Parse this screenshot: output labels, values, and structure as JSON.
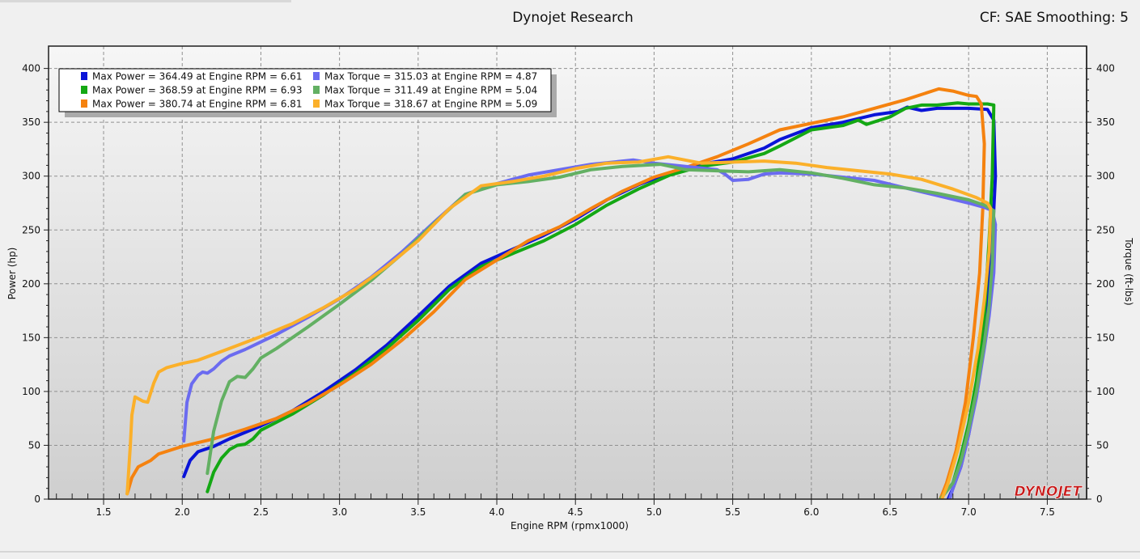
{
  "header": {
    "title": "Dynojet Research",
    "right_info": "CF: SAE Smoothing: 5"
  },
  "logo_text": "DYNOJET",
  "colors": {
    "background": "#f0f0f0",
    "plot_top": "#f6f6f6",
    "plot_bottom": "#cfcfcf",
    "frame": "#1e1e1e"
  },
  "chart_data": {
    "type": "line",
    "xlabel": "Engine RPM (rpmx1000)",
    "ylabel": "Power (hp)",
    "y2label": "Torque (ft-lbs)",
    "xlim": [
      1.15,
      7.75
    ],
    "ylim": [
      0,
      420
    ],
    "y2lim": [
      0,
      420
    ],
    "xticks": [
      1.5,
      2.0,
      2.5,
      3.0,
      3.5,
      4.0,
      4.5,
      5.0,
      5.5,
      6.0,
      6.5,
      7.0,
      7.5
    ],
    "xtick_labels": [
      "1.5",
      "2.0",
      "2.5",
      "3.0",
      "3.5",
      "4.0",
      "4.5",
      "5.0",
      "5.5",
      "6.0",
      "6.5",
      "7.0",
      "7.5"
    ],
    "yticks": [
      0,
      50,
      100,
      150,
      200,
      250,
      300,
      350,
      400
    ],
    "ytick_labels": [
      "0",
      "50",
      "100",
      "150",
      "200",
      "250",
      "300",
      "350",
      "400"
    ],
    "grid": true,
    "legend_position": "top-left",
    "legend": [
      {
        "text": "Max Power = 364.49 at Engine RPM = 6.61",
        "color": "#0a14d8"
      },
      {
        "text": "Max Power = 368.59 at Engine RPM = 6.93",
        "color": "#14a814"
      },
      {
        "text": "Max Power = 380.74 at Engine RPM = 6.81",
        "color": "#f5820f"
      },
      {
        "text": "Max Torque = 315.03 at Engine RPM = 4.87",
        "color": "#6b6bf0"
      },
      {
        "text": "Max Torque = 311.49 at Engine RPM = 5.04",
        "color": "#63b063"
      },
      {
        "text": "Max Torque = 318.67 at Engine RPM = 5.09",
        "color": "#fbb02a"
      }
    ],
    "series": [
      {
        "color": "#0a14d8",
        "points": [
          [
            2.01,
            21
          ],
          [
            2.05,
            36
          ],
          [
            2.1,
            44
          ],
          [
            2.2,
            49
          ],
          [
            2.3,
            56
          ],
          [
            2.5,
            68
          ],
          [
            2.7,
            82
          ],
          [
            2.9,
            100
          ],
          [
            3.1,
            120
          ],
          [
            3.3,
            143
          ],
          [
            3.5,
            170
          ],
          [
            3.7,
            198
          ],
          [
            3.9,
            219
          ],
          [
            4.1,
            232
          ],
          [
            4.3,
            245
          ],
          [
            4.5,
            260
          ],
          [
            4.7,
            278
          ],
          [
            4.9,
            292
          ],
          [
            5.1,
            303
          ],
          [
            5.3,
            311
          ],
          [
            5.5,
            316
          ],
          [
            5.7,
            326
          ],
          [
            5.8,
            334
          ],
          [
            6.0,
            345
          ],
          [
            6.2,
            350
          ],
          [
            6.4,
            357
          ],
          [
            6.55,
            360
          ],
          [
            6.61,
            364
          ],
          [
            6.7,
            361
          ],
          [
            6.8,
            363
          ],
          [
            7.0,
            363
          ],
          [
            7.12,
            362
          ],
          [
            7.16,
            352
          ],
          [
            7.17,
            300
          ],
          [
            7.15,
            240
          ],
          [
            7.1,
            160
          ],
          [
            7.05,
            100
          ],
          [
            7.0,
            60
          ],
          [
            6.95,
            30
          ],
          [
            6.9,
            10
          ],
          [
            6.87,
            0
          ]
        ]
      },
      {
        "color": "#14a814",
        "points": [
          [
            2.16,
            7
          ],
          [
            2.2,
            25
          ],
          [
            2.25,
            38
          ],
          [
            2.3,
            46
          ],
          [
            2.35,
            50
          ],
          [
            2.4,
            51
          ],
          [
            2.45,
            56
          ],
          [
            2.5,
            64
          ],
          [
            2.7,
            79
          ],
          [
            2.9,
            97
          ],
          [
            3.1,
            117
          ],
          [
            3.3,
            140
          ],
          [
            3.5,
            166
          ],
          [
            3.7,
            195
          ],
          [
            3.9,
            216
          ],
          [
            4.1,
            228
          ],
          [
            4.3,
            240
          ],
          [
            4.5,
            255
          ],
          [
            4.7,
            273
          ],
          [
            4.9,
            288
          ],
          [
            5.1,
            301
          ],
          [
            5.3,
            309
          ],
          [
            5.5,
            313
          ],
          [
            5.7,
            321
          ],
          [
            5.8,
            328
          ],
          [
            6.0,
            343
          ],
          [
            6.2,
            347
          ],
          [
            6.3,
            352
          ],
          [
            6.35,
            348
          ],
          [
            6.5,
            355
          ],
          [
            6.6,
            363
          ],
          [
            6.7,
            366
          ],
          [
            6.8,
            366
          ],
          [
            6.93,
            368
          ],
          [
            7.0,
            367
          ],
          [
            7.12,
            367
          ],
          [
            7.16,
            366
          ],
          [
            7.15,
            300
          ],
          [
            7.13,
            240
          ],
          [
            7.1,
            170
          ],
          [
            7.05,
            110
          ],
          [
            7.0,
            70
          ],
          [
            6.95,
            40
          ],
          [
            6.9,
            15
          ],
          [
            6.82,
            0
          ]
        ]
      },
      {
        "color": "#f5820f",
        "points": [
          [
            1.65,
            5
          ],
          [
            1.68,
            20
          ],
          [
            1.72,
            30
          ],
          [
            1.8,
            36
          ],
          [
            1.85,
            42
          ],
          [
            2.0,
            49
          ],
          [
            2.2,
            56
          ],
          [
            2.4,
            65
          ],
          [
            2.6,
            75
          ],
          [
            2.8,
            89
          ],
          [
            3.0,
            106
          ],
          [
            3.2,
            125
          ],
          [
            3.4,
            148
          ],
          [
            3.6,
            174
          ],
          [
            3.8,
            204
          ],
          [
            4.0,
            222
          ],
          [
            4.2,
            240
          ],
          [
            4.4,
            253
          ],
          [
            4.6,
            270
          ],
          [
            4.8,
            286
          ],
          [
            5.0,
            299
          ],
          [
            5.2,
            308
          ],
          [
            5.4,
            318
          ],
          [
            5.6,
            330
          ],
          [
            5.8,
            343
          ],
          [
            6.0,
            349
          ],
          [
            6.2,
            355
          ],
          [
            6.4,
            363
          ],
          [
            6.6,
            371
          ],
          [
            6.81,
            381
          ],
          [
            6.9,
            379
          ],
          [
            7.0,
            375
          ],
          [
            7.05,
            374
          ],
          [
            7.08,
            367
          ],
          [
            7.1,
            330
          ],
          [
            7.09,
            270
          ],
          [
            7.07,
            210
          ],
          [
            7.03,
            150
          ],
          [
            6.98,
            90
          ],
          [
            6.92,
            45
          ],
          [
            6.86,
            15
          ],
          [
            6.82,
            0
          ]
        ]
      },
      {
        "color": "#6b6bf0",
        "points": [
          [
            2.01,
            54
          ],
          [
            2.03,
            90
          ],
          [
            2.06,
            107
          ],
          [
            2.1,
            115
          ],
          [
            2.13,
            118
          ],
          [
            2.16,
            117
          ],
          [
            2.2,
            121
          ],
          [
            2.25,
            128
          ],
          [
            2.3,
            133
          ],
          [
            2.4,
            139
          ],
          [
            2.5,
            146
          ],
          [
            2.6,
            153
          ],
          [
            2.8,
            169
          ],
          [
            3.0,
            186
          ],
          [
            3.2,
            206
          ],
          [
            3.4,
            230
          ],
          [
            3.6,
            257
          ],
          [
            3.8,
            283
          ],
          [
            4.0,
            293
          ],
          [
            4.2,
            301
          ],
          [
            4.4,
            306
          ],
          [
            4.6,
            311
          ],
          [
            4.87,
            315
          ],
          [
            5.0,
            312
          ],
          [
            5.2,
            309
          ],
          [
            5.4,
            306
          ],
          [
            5.45,
            302
          ],
          [
            5.5,
            296
          ],
          [
            5.6,
            297
          ],
          [
            5.7,
            302
          ],
          [
            5.8,
            303
          ],
          [
            6.0,
            302
          ],
          [
            6.2,
            299
          ],
          [
            6.4,
            296
          ],
          [
            6.6,
            289
          ],
          [
            6.8,
            282
          ],
          [
            7.0,
            275
          ],
          [
            7.1,
            271
          ],
          [
            7.15,
            268
          ],
          [
            7.17,
            255
          ],
          [
            7.16,
            210
          ],
          [
            7.13,
            170
          ],
          [
            7.1,
            140
          ],
          [
            7.05,
            95
          ],
          [
            7.0,
            60
          ],
          [
            6.95,
            30
          ],
          [
            6.9,
            10
          ],
          [
            6.88,
            0
          ]
        ]
      },
      {
        "color": "#63b063",
        "points": [
          [
            2.16,
            24
          ],
          [
            2.2,
            63
          ],
          [
            2.25,
            91
          ],
          [
            2.3,
            109
          ],
          [
            2.35,
            114
          ],
          [
            2.4,
            113
          ],
          [
            2.45,
            121
          ],
          [
            2.5,
            131
          ],
          [
            2.6,
            140
          ],
          [
            2.8,
            160
          ],
          [
            3.0,
            181
          ],
          [
            3.2,
            203
          ],
          [
            3.4,
            228
          ],
          [
            3.6,
            256
          ],
          [
            3.8,
            283
          ],
          [
            4.0,
            292
          ],
          [
            4.2,
            295
          ],
          [
            4.4,
            299
          ],
          [
            4.6,
            306
          ],
          [
            4.8,
            309
          ],
          [
            5.04,
            311
          ],
          [
            5.2,
            306
          ],
          [
            5.4,
            305
          ],
          [
            5.6,
            304
          ],
          [
            5.8,
            306
          ],
          [
            6.0,
            303
          ],
          [
            6.2,
            298
          ],
          [
            6.4,
            292
          ],
          [
            6.6,
            289
          ],
          [
            6.8,
            284
          ],
          [
            7.0,
            278
          ],
          [
            7.1,
            273
          ],
          [
            7.16,
            268
          ],
          [
            7.15,
            220
          ],
          [
            7.13,
            180
          ],
          [
            7.1,
            145
          ],
          [
            7.05,
            100
          ],
          [
            7.0,
            65
          ],
          [
            6.95,
            35
          ],
          [
            6.9,
            15
          ],
          [
            6.82,
            0
          ]
        ]
      },
      {
        "color": "#fbb02a",
        "points": [
          [
            1.65,
            5
          ],
          [
            1.67,
            50
          ],
          [
            1.68,
            78
          ],
          [
            1.7,
            95
          ],
          [
            1.75,
            91
          ],
          [
            1.78,
            90
          ],
          [
            1.82,
            108
          ],
          [
            1.85,
            118
          ],
          [
            1.9,
            122
          ],
          [
            2.0,
            126
          ],
          [
            2.1,
            129
          ],
          [
            2.3,
            140
          ],
          [
            2.5,
            151
          ],
          [
            2.7,
            163
          ],
          [
            2.9,
            178
          ],
          [
            3.1,
            195
          ],
          [
            3.3,
            216
          ],
          [
            3.5,
            240
          ],
          [
            3.7,
            270
          ],
          [
            3.9,
            291
          ],
          [
            4.1,
            295
          ],
          [
            4.3,
            300
          ],
          [
            4.5,
            307
          ],
          [
            4.7,
            312
          ],
          [
            4.9,
            313
          ],
          [
            5.09,
            318
          ],
          [
            5.3,
            312
          ],
          [
            5.5,
            313
          ],
          [
            5.7,
            314
          ],
          [
            5.9,
            312
          ],
          [
            6.1,
            308
          ],
          [
            6.3,
            305
          ],
          [
            6.5,
            302
          ],
          [
            6.7,
            297
          ],
          [
            6.9,
            288
          ],
          [
            7.05,
            280
          ],
          [
            7.12,
            275
          ],
          [
            7.14,
            270
          ],
          [
            7.13,
            230
          ],
          [
            7.1,
            185
          ],
          [
            7.06,
            140
          ],
          [
            7.0,
            90
          ],
          [
            6.93,
            45
          ],
          [
            6.87,
            15
          ],
          [
            6.83,
            0
          ]
        ]
      }
    ]
  }
}
